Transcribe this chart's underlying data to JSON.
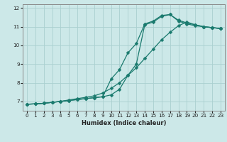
{
  "xlabel": "Humidex (Indice chaleur)",
  "bg_color": "#cce8e8",
  "grid_color": "#aad0d0",
  "line_color": "#1a7a6e",
  "xlim": [
    -0.5,
    23.5
  ],
  "ylim": [
    6.5,
    12.2
  ],
  "yticks": [
    7,
    8,
    9,
    10,
    11,
    12
  ],
  "xticks": [
    0,
    1,
    2,
    3,
    4,
    5,
    6,
    7,
    8,
    9,
    10,
    11,
    12,
    13,
    14,
    15,
    16,
    17,
    18,
    19,
    20,
    21,
    22,
    23
  ],
  "curve1_x": [
    0,
    1,
    2,
    3,
    4,
    5,
    6,
    7,
    8,
    9,
    10,
    11,
    12,
    13,
    14,
    15,
    16,
    17,
    18,
    19,
    20,
    21,
    22,
    23
  ],
  "curve1_y": [
    6.85,
    6.87,
    6.9,
    6.95,
    7.0,
    7.05,
    7.1,
    7.15,
    7.2,
    7.25,
    7.35,
    7.65,
    8.4,
    9.0,
    11.1,
    11.25,
    11.55,
    11.65,
    11.35,
    11.2,
    11.1,
    11.0,
    10.95,
    10.9
  ],
  "curve2_x": [
    0,
    1,
    2,
    3,
    4,
    5,
    6,
    7,
    8,
    9,
    10,
    11,
    12,
    13,
    14,
    15,
    16,
    17,
    18,
    19,
    20,
    21,
    22,
    23
  ],
  "curve2_y": [
    6.85,
    6.87,
    6.9,
    6.95,
    7.0,
    7.05,
    7.1,
    7.15,
    7.2,
    7.25,
    8.2,
    8.7,
    9.6,
    10.1,
    11.15,
    11.3,
    11.6,
    11.65,
    11.3,
    11.15,
    11.05,
    11.0,
    10.95,
    10.9
  ],
  "curve3_x": [
    0,
    1,
    2,
    3,
    4,
    5,
    6,
    7,
    8,
    9,
    10,
    11,
    12,
    13,
    14,
    15,
    16,
    17,
    18,
    19,
    20,
    21,
    22,
    23
  ],
  "curve3_y": [
    6.85,
    6.87,
    6.9,
    6.95,
    7.0,
    7.08,
    7.15,
    7.22,
    7.3,
    7.45,
    7.7,
    8.0,
    8.4,
    8.8,
    9.3,
    9.8,
    10.3,
    10.7,
    11.05,
    11.25,
    11.1,
    11.0,
    10.95,
    10.9
  ],
  "marker": "D",
  "markersize": 2.5,
  "linewidth": 0.9,
  "xlabel_fontsize": 6,
  "tick_fontsize": 5.2
}
